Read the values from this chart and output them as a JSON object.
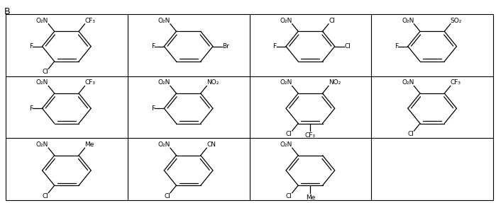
{
  "title_label": "B",
  "grid_rows": 3,
  "grid_cols": 4,
  "background_color": "#ffffff",
  "border_color": "#000000",
  "structures": [
    {
      "row": 0,
      "col": 0,
      "subs": [
        {
          "pos": "top_left_vertex",
          "label": "O₂N"
        },
        {
          "pos": "top_right_vertex",
          "label": "CF₃"
        },
        {
          "pos": "left_vertex",
          "label": "F"
        },
        {
          "pos": "bottom_left_vertex",
          "label": "Cl"
        }
      ]
    },
    {
      "row": 0,
      "col": 1,
      "subs": [
        {
          "pos": "top_left_vertex",
          "label": "O₂N"
        },
        {
          "pos": "left_vertex",
          "label": "F"
        },
        {
          "pos": "right_vertex",
          "label": "Br"
        }
      ]
    },
    {
      "row": 0,
      "col": 2,
      "subs": [
        {
          "pos": "top_left_vertex",
          "label": "O₂N"
        },
        {
          "pos": "top_right_vertex",
          "label": "Cl"
        },
        {
          "pos": "left_vertex",
          "label": "F"
        },
        {
          "pos": "right_vertex",
          "label": "Cl"
        }
      ]
    },
    {
      "row": 0,
      "col": 3,
      "subs": [
        {
          "pos": "top_left_vertex",
          "label": "O₂N"
        },
        {
          "pos": "top_right_vertex",
          "label": "SO₂"
        },
        {
          "pos": "left_vertex",
          "label": "F"
        }
      ]
    },
    {
      "row": 1,
      "col": 0,
      "subs": [
        {
          "pos": "top_left_vertex",
          "label": "O₂N"
        },
        {
          "pos": "top_right_vertex",
          "label": "CF₃"
        },
        {
          "pos": "left_vertex",
          "label": "F"
        }
      ]
    },
    {
      "row": 1,
      "col": 1,
      "subs": [
        {
          "pos": "top_left_vertex",
          "label": "O₂N"
        },
        {
          "pos": "top_right_vertex",
          "label": "NO₂"
        },
        {
          "pos": "left_vertex",
          "label": "F"
        }
      ]
    },
    {
      "row": 1,
      "col": 2,
      "subs": [
        {
          "pos": "top_left_vertex",
          "label": "O₂N"
        },
        {
          "pos": "top_right_vertex",
          "label": "NO₂"
        },
        {
          "pos": "bottom_left_vertex",
          "label": "Cl"
        },
        {
          "pos": "bottom_vertex",
          "label": "CF₃"
        }
      ]
    },
    {
      "row": 1,
      "col": 3,
      "subs": [
        {
          "pos": "top_left_vertex",
          "label": "O₂N"
        },
        {
          "pos": "top_right_vertex",
          "label": "CF₃"
        },
        {
          "pos": "bottom_left_vertex",
          "label": "Cl"
        }
      ]
    },
    {
      "row": 2,
      "col": 0,
      "subs": [
        {
          "pos": "top_left_vertex",
          "label": "O₂N"
        },
        {
          "pos": "top_right_vertex",
          "label": "Me"
        },
        {
          "pos": "bottom_left_vertex",
          "label": "Cl"
        }
      ]
    },
    {
      "row": 2,
      "col": 1,
      "subs": [
        {
          "pos": "top_left_vertex",
          "label": "O₂N"
        },
        {
          "pos": "top_right_vertex",
          "label": "CN"
        },
        {
          "pos": "bottom_left_vertex",
          "label": "Cl"
        }
      ]
    },
    {
      "row": 2,
      "col": 2,
      "subs": [
        {
          "pos": "top_left_vertex",
          "label": "O₂N"
        },
        {
          "pos": "bottom_left_vertex",
          "label": "Cl"
        },
        {
          "pos": "bottom_vertex",
          "label": "Me"
        }
      ]
    },
    {
      "row": 2,
      "col": 3,
      "subs": []
    }
  ],
  "line_color": "#000000",
  "text_color": "#000000",
  "font_size": 6.5
}
